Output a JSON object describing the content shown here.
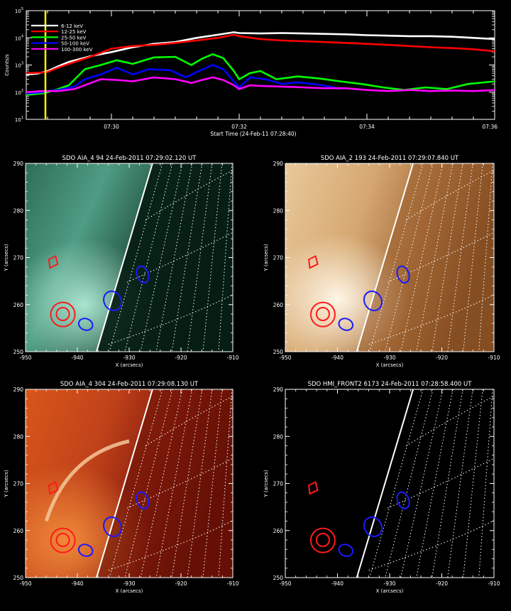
{
  "lightcurve": {
    "type": "line",
    "ylabel": "Counts/s",
    "xlabel": "Start Time (24-Feb-11 07:28:40)",
    "x_range_seconds": [
      0,
      440
    ],
    "x_ticks": [
      {
        "label": "07:30",
        "t": 80
      },
      {
        "label": "07:32",
        "t": 200
      },
      {
        "label": "07:34",
        "t": 320
      },
      {
        "label": "07:36",
        "t": 440
      }
    ],
    "y_ticks": [
      {
        "label": "10",
        "exp": "1",
        "value": 10
      },
      {
        "label": "10",
        "exp": "2",
        "value": 100
      },
      {
        "label": "10",
        "exp": "3",
        "value": 1000
      },
      {
        "label": "10",
        "exp": "4",
        "value": 10000
      },
      {
        "label": "10",
        "exp": "5",
        "value": 100000
      }
    ],
    "y_log_range": [
      10,
      100000
    ],
    "marker_time_seconds": 18,
    "marker_color": "#ffff00",
    "series": [
      {
        "name": "6-12 keV",
        "color": "#ffffff",
        "points": [
          [
            0,
            450
          ],
          [
            10,
            480
          ],
          [
            20,
            600
          ],
          [
            30,
            900
          ],
          [
            40,
            1300
          ],
          [
            60,
            2100
          ],
          [
            80,
            3000
          ],
          [
            100,
            4500
          ],
          [
            120,
            6000
          ],
          [
            140,
            7000
          ],
          [
            160,
            10000
          ],
          [
            180,
            13000
          ],
          [
            195,
            16000
          ],
          [
            200,
            15000
          ],
          [
            220,
            14500
          ],
          [
            240,
            15000
          ],
          [
            260,
            14500
          ],
          [
            280,
            14000
          ],
          [
            300,
            13500
          ],
          [
            320,
            12500
          ],
          [
            340,
            12000
          ],
          [
            360,
            11500
          ],
          [
            380,
            11500
          ],
          [
            400,
            11000
          ],
          [
            420,
            10000
          ],
          [
            440,
            9000
          ]
        ]
      },
      {
        "name": "12-25 keV",
        "color": "#ff0000",
        "points": [
          [
            0,
            500
          ],
          [
            10,
            520
          ],
          [
            20,
            550
          ],
          [
            30,
            800
          ],
          [
            40,
            1100
          ],
          [
            60,
            2000
          ],
          [
            80,
            4000
          ],
          [
            100,
            5000
          ],
          [
            120,
            5500
          ],
          [
            140,
            6500
          ],
          [
            160,
            8000
          ],
          [
            180,
            10000
          ],
          [
            195,
            13000
          ],
          [
            200,
            11500
          ],
          [
            220,
            9000
          ],
          [
            240,
            8000
          ],
          [
            260,
            7500
          ],
          [
            280,
            7000
          ],
          [
            300,
            6500
          ],
          [
            320,
            6000
          ],
          [
            340,
            5500
          ],
          [
            360,
            5000
          ],
          [
            380,
            4500
          ],
          [
            400,
            4200
          ],
          [
            420,
            3800
          ],
          [
            440,
            3200
          ]
        ]
      },
      {
        "name": "25-50 keV",
        "color": "#00ff00",
        "points": [
          [
            0,
            80
          ],
          [
            15,
            90
          ],
          [
            20,
            100
          ],
          [
            30,
            130
          ],
          [
            40,
            180
          ],
          [
            55,
            700
          ],
          [
            70,
            1000
          ],
          [
            85,
            1500
          ],
          [
            100,
            1100
          ],
          [
            120,
            1900
          ],
          [
            140,
            2000
          ],
          [
            155,
            1000
          ],
          [
            165,
            1700
          ],
          [
            175,
            2500
          ],
          [
            185,
            1800
          ],
          [
            195,
            600
          ],
          [
            200,
            300
          ],
          [
            210,
            500
          ],
          [
            220,
            600
          ],
          [
            235,
            300
          ],
          [
            255,
            380
          ],
          [
            275,
            320
          ],
          [
            295,
            250
          ],
          [
            315,
            200
          ],
          [
            335,
            150
          ],
          [
            355,
            120
          ],
          [
            375,
            150
          ],
          [
            395,
            130
          ],
          [
            415,
            200
          ],
          [
            440,
            250
          ]
        ]
      },
      {
        "name": "50-100 keV",
        "color": "#0000ff",
        "points": [
          [
            0,
            90
          ],
          [
            15,
            100
          ],
          [
            20,
            110
          ],
          [
            30,
            120
          ],
          [
            45,
            160
          ],
          [
            55,
            300
          ],
          [
            70,
            450
          ],
          [
            85,
            800
          ],
          [
            100,
            450
          ],
          [
            115,
            700
          ],
          [
            135,
            650
          ],
          [
            150,
            350
          ],
          [
            160,
            550
          ],
          [
            175,
            1000
          ],
          [
            185,
            700
          ],
          [
            195,
            250
          ],
          [
            200,
            150
          ],
          [
            210,
            350
          ],
          [
            225,
            300
          ],
          [
            240,
            200
          ],
          [
            255,
            230
          ],
          [
            270,
            200
          ],
          [
            285,
            160
          ],
          [
            295,
            130
          ]
        ]
      },
      {
        "name": "100-300 keV",
        "color": "#ff00ff",
        "points": [
          [
            0,
            100
          ],
          [
            15,
            110
          ],
          [
            20,
            110
          ],
          [
            30,
            110
          ],
          [
            45,
            130
          ],
          [
            55,
            180
          ],
          [
            70,
            300
          ],
          [
            85,
            280
          ],
          [
            100,
            250
          ],
          [
            120,
            350
          ],
          [
            140,
            300
          ],
          [
            155,
            220
          ],
          [
            165,
            280
          ],
          [
            175,
            350
          ],
          [
            185,
            280
          ],
          [
            195,
            180
          ],
          [
            200,
            130
          ],
          [
            210,
            180
          ],
          [
            220,
            170
          ],
          [
            240,
            160
          ],
          [
            260,
            150
          ],
          [
            280,
            140
          ],
          [
            300,
            140
          ],
          [
            320,
            120
          ],
          [
            340,
            110
          ],
          [
            360,
            120
          ],
          [
            380,
            110
          ],
          [
            400,
            115
          ],
          [
            420,
            110
          ],
          [
            440,
            120
          ]
        ]
      }
    ]
  },
  "image_panels": [
    {
      "title": "SDO AIA_4 94 24-Feb-2011 07:29:02.120 UT",
      "ylabel": "Y (arcsecs)",
      "xlabel": "X (arcsecs)",
      "palette": "aia94",
      "x_ticks": [
        "-950",
        "-940",
        "-930",
        "-920",
        "-910"
      ],
      "y_ticks": [
        "250",
        "260",
        "270",
        "280",
        "290"
      ]
    },
    {
      "title": "SDO AIA_2 193 24-Feb-2011 07:29:07.840 UT",
      "ylabel": "Y (arcsecs)",
      "xlabel": "X (arcsecs)",
      "palette": "aia193",
      "x_ticks": [
        "-950",
        "-940",
        "-930",
        "-920",
        "-910"
      ],
      "y_ticks": [
        "250",
        "260",
        "270",
        "280",
        "290"
      ]
    },
    {
      "title": "SDO AIA_4 304 24-Feb-2011 07:29:08.130 UT",
      "ylabel": "Y (arcsecs)",
      "xlabel": "X (arcsecs)",
      "palette": "aia304",
      "x_ticks": [
        "-950",
        "-940",
        "-930",
        "-920",
        "-910"
      ],
      "y_ticks": [
        "250",
        "260",
        "270",
        "280",
        "290"
      ]
    },
    {
      "title": "SDO HMI_FRONT2 6173 24-Feb-2011 07:28:58.400 UT",
      "ylabel": "Y (arcsecs)",
      "xlabel": "X (arcsecs)",
      "palette": "hmi",
      "x_ticks": [
        "-950",
        "-940",
        "-930",
        "-920",
        "-910"
      ],
      "y_ticks": [
        "250",
        "260",
        "270",
        "280",
        "290"
      ]
    }
  ]
}
